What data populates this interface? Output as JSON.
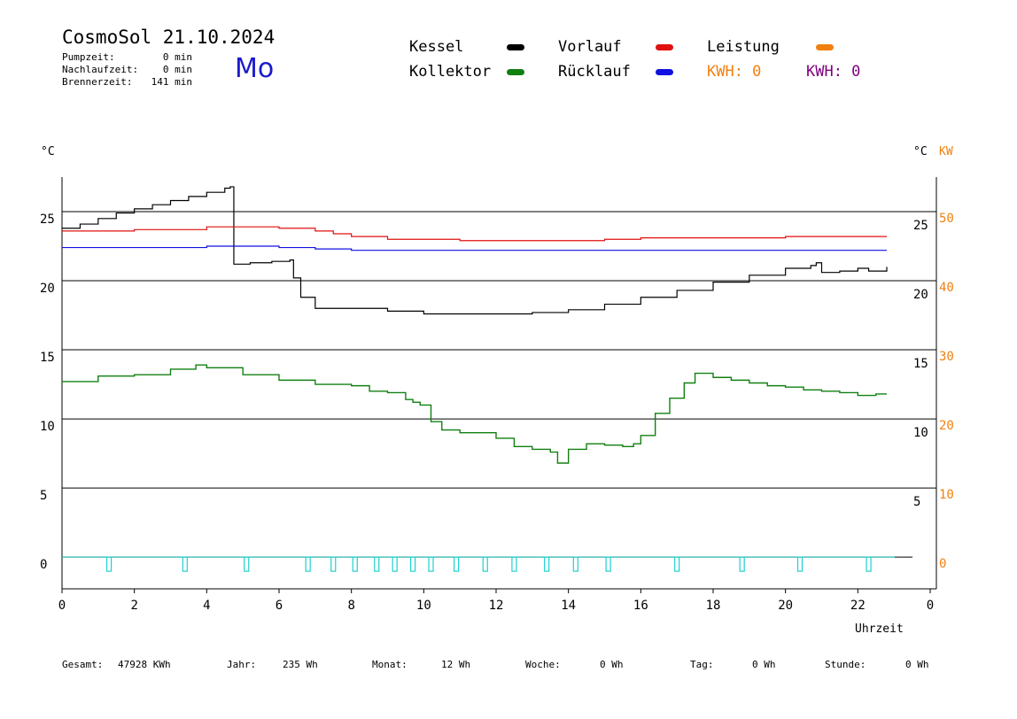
{
  "header": {
    "title": "CosmoSol 21.10.2024",
    "weekday": "Mo",
    "stats": [
      {
        "label": "Pumpzeit:",
        "value": "0 min"
      },
      {
        "label": "Nachlaufzeit:",
        "value": "0 min"
      },
      {
        "label": "Brennerzeit:",
        "value": "141 min"
      }
    ]
  },
  "legend": {
    "items": [
      {
        "label": "Kessel",
        "color": "#000000"
      },
      {
        "label": "Vorlauf",
        "color": "#e01010"
      },
      {
        "label": "Leistung",
        "color": "#f08010"
      },
      {
        "label": "Kollektor",
        "color": "#108010"
      },
      {
        "label": "Rücklauf",
        "color": "#1010e0"
      }
    ],
    "kwh_orange": "KWH: 0",
    "kwh_purple": "KWH: 0",
    "kwh_orange_color": "#f08010",
    "kwh_purple_color": "#800080"
  },
  "footer": [
    {
      "label": "Gesamt:",
      "value": "47928 KWh"
    },
    {
      "label": "Jahr:",
      "value": "235 Wh"
    },
    {
      "label": "Monat:",
      "value": "12 Wh"
    },
    {
      "label": "Woche:",
      "value": "0 Wh"
    },
    {
      "label": "Tag:",
      "value": "0 Wh"
    },
    {
      "label": "Stunde:",
      "value": "0 Wh"
    }
  ],
  "chart_data": {
    "type": "line",
    "xlabel": "Uhrzeit",
    "ylabel_left": "°C",
    "ylabel_right_unit1": "°C",
    "ylabel_right_unit2": "KW",
    "xlim": [
      0,
      24
    ],
    "ylim": [
      -2.3,
      27.5
    ],
    "grid": "horizontal",
    "x_ticks": [
      "0",
      "2",
      "4",
      "6",
      "8",
      "10",
      "12",
      "14",
      "16",
      "18",
      "20",
      "22",
      "0"
    ],
    "y_ticks_left": [
      "25",
      "20",
      "15",
      "10",
      "5",
      "0"
    ],
    "y_ticks_right_celsius": [
      "25",
      "20",
      "15",
      "10",
      "5"
    ],
    "y_ticks_right_kw": [
      "50",
      "40",
      "30",
      "20",
      "10",
      "0"
    ],
    "series": [
      {
        "name": "Kessel",
        "color": "#000000",
        "points": [
          [
            0,
            23.8
          ],
          [
            0.5,
            24.1
          ],
          [
            1,
            24.5
          ],
          [
            1.5,
            24.9
          ],
          [
            2,
            25.2
          ],
          [
            2.5,
            25.5
          ],
          [
            3,
            25.8
          ],
          [
            3.5,
            26.1
          ],
          [
            4,
            26.4
          ],
          [
            4.5,
            26.7
          ],
          [
            4.65,
            26.8
          ],
          [
            4.75,
            21.2
          ],
          [
            5.2,
            21.3
          ],
          [
            5.8,
            21.4
          ],
          [
            6.3,
            21.5
          ],
          [
            6.4,
            20.2
          ],
          [
            6.6,
            18.8
          ],
          [
            7,
            18.0
          ],
          [
            8,
            18.0
          ],
          [
            9,
            17.8
          ],
          [
            10,
            17.6
          ],
          [
            11,
            17.6
          ],
          [
            12,
            17.6
          ],
          [
            13,
            17.7
          ],
          [
            14,
            17.9
          ],
          [
            15,
            18.3
          ],
          [
            16,
            18.8
          ],
          [
            17,
            19.3
          ],
          [
            18,
            19.9
          ],
          [
            19,
            20.4
          ],
          [
            20,
            20.9
          ],
          [
            20.7,
            21.1
          ],
          [
            20.85,
            21.3
          ],
          [
            21,
            20.6
          ],
          [
            21.5,
            20.7
          ],
          [
            22,
            20.9
          ],
          [
            22.3,
            20.7
          ],
          [
            22.8,
            21.0
          ]
        ]
      },
      {
        "name": "Vorlauf",
        "color": "#e01010",
        "points": [
          [
            0,
            23.6
          ],
          [
            2,
            23.7
          ],
          [
            4,
            23.9
          ],
          [
            5,
            23.9
          ],
          [
            6,
            23.8
          ],
          [
            7,
            23.6
          ],
          [
            7.5,
            23.4
          ],
          [
            8,
            23.2
          ],
          [
            9,
            23.0
          ],
          [
            10,
            23.0
          ],
          [
            11,
            22.9
          ],
          [
            12,
            22.9
          ],
          [
            13,
            22.9
          ],
          [
            14,
            22.9
          ],
          [
            15,
            23.0
          ],
          [
            16,
            23.1
          ],
          [
            17,
            23.1
          ],
          [
            18,
            23.1
          ],
          [
            19,
            23.1
          ],
          [
            20,
            23.2
          ],
          [
            21,
            23.2
          ],
          [
            22,
            23.2
          ],
          [
            22.8,
            23.2
          ]
        ]
      },
      {
        "name": "Rücklauf",
        "color": "#1010e0",
        "points": [
          [
            0,
            22.4
          ],
          [
            2,
            22.4
          ],
          [
            4,
            22.5
          ],
          [
            5,
            22.5
          ],
          [
            6,
            22.4
          ],
          [
            7,
            22.3
          ],
          [
            8,
            22.2
          ],
          [
            10,
            22.2
          ],
          [
            12,
            22.2
          ],
          [
            14,
            22.2
          ],
          [
            16,
            22.2
          ],
          [
            18,
            22.2
          ],
          [
            20,
            22.2
          ],
          [
            22,
            22.2
          ],
          [
            22.8,
            22.2
          ]
        ]
      },
      {
        "name": "Kollektor",
        "color": "#108010",
        "points": [
          [
            0,
            12.7
          ],
          [
            1,
            13.1
          ],
          [
            2,
            13.2
          ],
          [
            3,
            13.6
          ],
          [
            3.7,
            13.9
          ],
          [
            4,
            13.7
          ],
          [
            5,
            13.2
          ],
          [
            6,
            12.8
          ],
          [
            7,
            12.5
          ],
          [
            8,
            12.4
          ],
          [
            8.5,
            12.0
          ],
          [
            9,
            11.9
          ],
          [
            9.5,
            11.4
          ],
          [
            9.7,
            11.2
          ],
          [
            9.9,
            11.0
          ],
          [
            10.2,
            9.8
          ],
          [
            10.5,
            9.2
          ],
          [
            11,
            9.0
          ],
          [
            11.5,
            9.0
          ],
          [
            12,
            8.6
          ],
          [
            12.5,
            8.0
          ],
          [
            13,
            7.8
          ],
          [
            13.5,
            7.6
          ],
          [
            13.7,
            6.8
          ],
          [
            14,
            7.8
          ],
          [
            14.5,
            8.2
          ],
          [
            15,
            8.1
          ],
          [
            15.5,
            8.0
          ],
          [
            15.8,
            8.2
          ],
          [
            16,
            8.8
          ],
          [
            16.4,
            10.4
          ],
          [
            16.8,
            11.5
          ],
          [
            17.2,
            12.6
          ],
          [
            17.5,
            13.3
          ],
          [
            18,
            13.0
          ],
          [
            18.5,
            12.8
          ],
          [
            19,
            12.6
          ],
          [
            19.5,
            12.4
          ],
          [
            20,
            12.3
          ],
          [
            20.5,
            12.1
          ],
          [
            21,
            12.0
          ],
          [
            21.5,
            11.9
          ],
          [
            22,
            11.7
          ],
          [
            22.5,
            11.8
          ],
          [
            22.8,
            11.8
          ]
        ]
      }
    ],
    "pump_markers": {
      "color": "#20d0d0",
      "x": [
        1.3,
        3.4,
        5.1,
        6.8,
        7.5,
        8.1,
        8.7,
        9.2,
        9.7,
        10.2,
        10.9,
        11.7,
        12.5,
        13.4,
        14.2,
        15.1,
        17.0,
        18.8,
        20.4,
        22.3
      ]
    }
  }
}
